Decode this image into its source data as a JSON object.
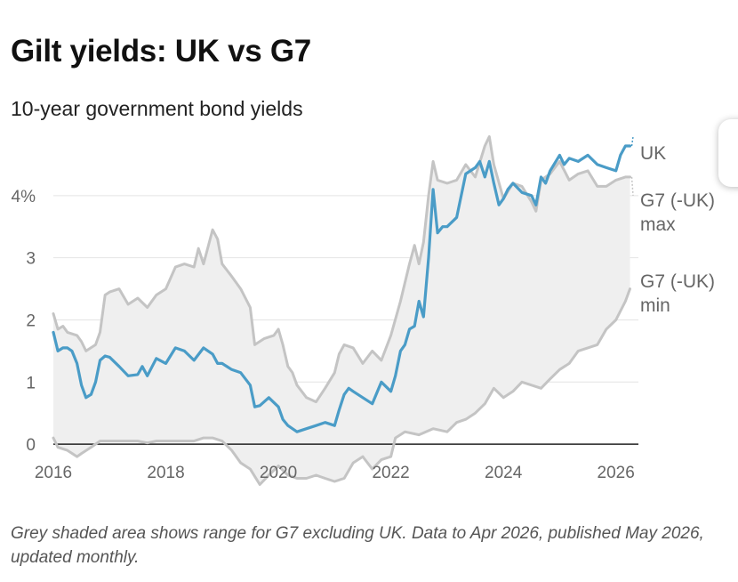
{
  "header": {
    "title": "Gilt yields: UK vs G7",
    "subtitle": "10-year government bond yields"
  },
  "footer": {
    "note": "Grey shaded area shows range for G7 excluding UK. Data to Apr 2026, published May 2026, updated monthly."
  },
  "colors": {
    "uk": "#4a9cc7",
    "g7_lines": "#c4c4c4",
    "range_fill": "#efefef",
    "grid": "#e4e4e4",
    "zero_line": "#222222"
  },
  "icons": {
    "edge_button": "more-options-icon"
  },
  "chart_data": {
    "type": "line",
    "title": "Gilt yields: UK vs G7",
    "subtitle": "10-year government bond yields",
    "xlim": [
      2016.0,
      2026.4
    ],
    "ylim": [
      -0.7,
      5.0
    ],
    "x_ticks": [
      2016,
      2018,
      2020,
      2022,
      2024,
      2026
    ],
    "x_tick_labels": [
      "2016",
      "2018",
      "2020",
      "2022",
      "2024",
      "2026"
    ],
    "y_ticks": [
      0,
      1,
      2,
      3,
      4
    ],
    "y_tick_labels": [
      "0",
      "1",
      "2",
      "3",
      "4%"
    ],
    "grid": "horizontal",
    "shaded_range": "between G7 (-UK) min and G7 (-UK) max",
    "series": [
      {
        "name": "UK",
        "label": "UK",
        "color": "#4a9cc7",
        "x": [
          2016.0,
          2016.08,
          2016.17,
          2016.25,
          2016.33,
          2016.42,
          2016.5,
          2016.58,
          2016.67,
          2016.75,
          2016.83,
          2016.92,
          2017.0,
          2017.17,
          2017.33,
          2017.5,
          2017.58,
          2017.67,
          2017.83,
          2018.0,
          2018.17,
          2018.33,
          2018.5,
          2018.67,
          2018.83,
          2018.92,
          2019.0,
          2019.17,
          2019.33,
          2019.5,
          2019.58,
          2019.67,
          2019.83,
          2020.0,
          2020.08,
          2020.17,
          2020.25,
          2020.33,
          2020.5,
          2020.67,
          2020.83,
          2021.0,
          2021.08,
          2021.17,
          2021.25,
          2021.33,
          2021.5,
          2021.67,
          2021.83,
          2022.0,
          2022.08,
          2022.17,
          2022.25,
          2022.33,
          2022.42,
          2022.5,
          2022.58,
          2022.67,
          2022.75,
          2022.83,
          2022.92,
          2023.0,
          2023.17,
          2023.33,
          2023.5,
          2023.58,
          2023.67,
          2023.75,
          2023.83,
          2023.92,
          2024.0,
          2024.08,
          2024.17,
          2024.33,
          2024.5,
          2024.58,
          2024.67,
          2024.75,
          2024.83,
          2025.0,
          2025.08,
          2025.17,
          2025.33,
          2025.5,
          2025.67,
          2025.83,
          2026.0,
          2026.08,
          2026.17,
          2026.25
        ],
        "values": [
          1.8,
          1.5,
          1.55,
          1.55,
          1.5,
          1.3,
          0.95,
          0.75,
          0.8,
          1.0,
          1.35,
          1.42,
          1.4,
          1.25,
          1.1,
          1.12,
          1.25,
          1.1,
          1.38,
          1.3,
          1.55,
          1.5,
          1.35,
          1.55,
          1.45,
          1.3,
          1.3,
          1.2,
          1.15,
          0.95,
          0.6,
          0.62,
          0.75,
          0.6,
          0.4,
          0.3,
          0.25,
          0.2,
          0.25,
          0.3,
          0.35,
          0.3,
          0.55,
          0.8,
          0.9,
          0.85,
          0.75,
          0.65,
          1.0,
          0.85,
          1.1,
          1.5,
          1.6,
          1.85,
          1.9,
          2.3,
          2.05,
          3.0,
          4.1,
          3.4,
          3.5,
          3.5,
          3.65,
          4.35,
          4.45,
          4.55,
          4.3,
          4.55,
          4.2,
          3.85,
          3.95,
          4.1,
          4.2,
          4.05,
          4.0,
          3.85,
          4.3,
          4.2,
          4.4,
          4.65,
          4.5,
          4.6,
          4.55,
          4.65,
          4.5,
          4.45,
          4.4,
          4.65,
          4.8,
          4.8
        ]
      },
      {
        "name": "G7 (-UK) max",
        "label": "G7 (-UK) max",
        "color": "#c4c4c4",
        "x": [
          2016.0,
          2016.08,
          2016.17,
          2016.25,
          2016.42,
          2016.5,
          2016.58,
          2016.75,
          2016.83,
          2016.92,
          2017.0,
          2017.17,
          2017.33,
          2017.5,
          2017.67,
          2017.83,
          2018.0,
          2018.17,
          2018.33,
          2018.5,
          2018.58,
          2018.67,
          2018.83,
          2018.92,
          2019.0,
          2019.17,
          2019.33,
          2019.5,
          2019.58,
          2019.75,
          2019.92,
          2020.0,
          2020.08,
          2020.17,
          2020.25,
          2020.33,
          2020.5,
          2020.67,
          2020.83,
          2021.0,
          2021.08,
          2021.17,
          2021.33,
          2021.5,
          2021.67,
          2021.83,
          2022.0,
          2022.17,
          2022.33,
          2022.42,
          2022.5,
          2022.58,
          2022.67,
          2022.75,
          2022.83,
          2023.0,
          2023.17,
          2023.33,
          2023.5,
          2023.67,
          2023.75,
          2023.83,
          2024.0,
          2024.17,
          2024.33,
          2024.5,
          2024.58,
          2024.67,
          2024.83,
          2025.0,
          2025.17,
          2025.33,
          2025.5,
          2025.67,
          2025.83,
          2026.0,
          2026.17,
          2026.25
        ],
        "values": [
          2.1,
          1.85,
          1.9,
          1.8,
          1.75,
          1.65,
          1.5,
          1.6,
          1.8,
          2.4,
          2.45,
          2.5,
          2.25,
          2.35,
          2.2,
          2.4,
          2.5,
          2.85,
          2.9,
          2.85,
          3.15,
          2.9,
          3.45,
          3.3,
          2.9,
          2.7,
          2.5,
          2.2,
          1.6,
          1.7,
          1.75,
          1.85,
          1.6,
          1.25,
          1.15,
          0.95,
          0.75,
          0.68,
          0.9,
          1.15,
          1.45,
          1.6,
          1.55,
          1.3,
          1.5,
          1.35,
          1.75,
          2.3,
          2.9,
          3.2,
          2.9,
          3.25,
          4.0,
          4.55,
          4.25,
          4.2,
          4.25,
          4.5,
          4.3,
          4.8,
          4.95,
          4.5,
          3.95,
          4.2,
          4.15,
          3.9,
          3.75,
          4.25,
          4.35,
          4.55,
          4.25,
          4.35,
          4.4,
          4.15,
          4.15,
          4.25,
          4.3,
          4.3
        ]
      },
      {
        "name": "G7 (-UK) min",
        "label": "G7 (-UK) min",
        "color": "#c4c4c4",
        "x": [
          2016.0,
          2016.08,
          2016.25,
          2016.42,
          2016.5,
          2016.67,
          2016.83,
          2017.0,
          2017.17,
          2017.33,
          2017.5,
          2017.67,
          2017.83,
          2018.0,
          2018.17,
          2018.33,
          2018.5,
          2018.67,
          2018.83,
          2019.0,
          2019.17,
          2019.33,
          2019.5,
          2019.67,
          2019.83,
          2020.0,
          2020.17,
          2020.33,
          2020.5,
          2020.67,
          2020.83,
          2021.0,
          2021.17,
          2021.33,
          2021.5,
          2021.67,
          2021.83,
          2022.0,
          2022.08,
          2022.25,
          2022.5,
          2022.75,
          2023.0,
          2023.17,
          2023.33,
          2023.5,
          2023.67,
          2023.83,
          2024.0,
          2024.17,
          2024.33,
          2024.5,
          2024.67,
          2024.83,
          2025.0,
          2025.17,
          2025.33,
          2025.5,
          2025.67,
          2025.83,
          2026.0,
          2026.17,
          2026.25
        ],
        "values": [
          0.1,
          -0.05,
          -0.1,
          -0.2,
          -0.15,
          -0.05,
          0.05,
          0.05,
          0.05,
          0.05,
          0.05,
          0.02,
          0.05,
          0.05,
          0.05,
          0.05,
          0.05,
          0.1,
          0.1,
          0.05,
          -0.1,
          -0.3,
          -0.4,
          -0.65,
          -0.5,
          -0.35,
          -0.5,
          -0.55,
          -0.55,
          -0.5,
          -0.55,
          -0.6,
          -0.55,
          -0.3,
          -0.2,
          -0.4,
          -0.25,
          -0.2,
          0.1,
          0.2,
          0.15,
          0.25,
          0.2,
          0.35,
          0.4,
          0.5,
          0.65,
          0.9,
          0.75,
          0.85,
          1.0,
          0.95,
          0.9,
          1.05,
          1.2,
          1.3,
          1.5,
          1.55,
          1.6,
          1.85,
          2.0,
          2.3,
          2.5
        ]
      }
    ]
  }
}
